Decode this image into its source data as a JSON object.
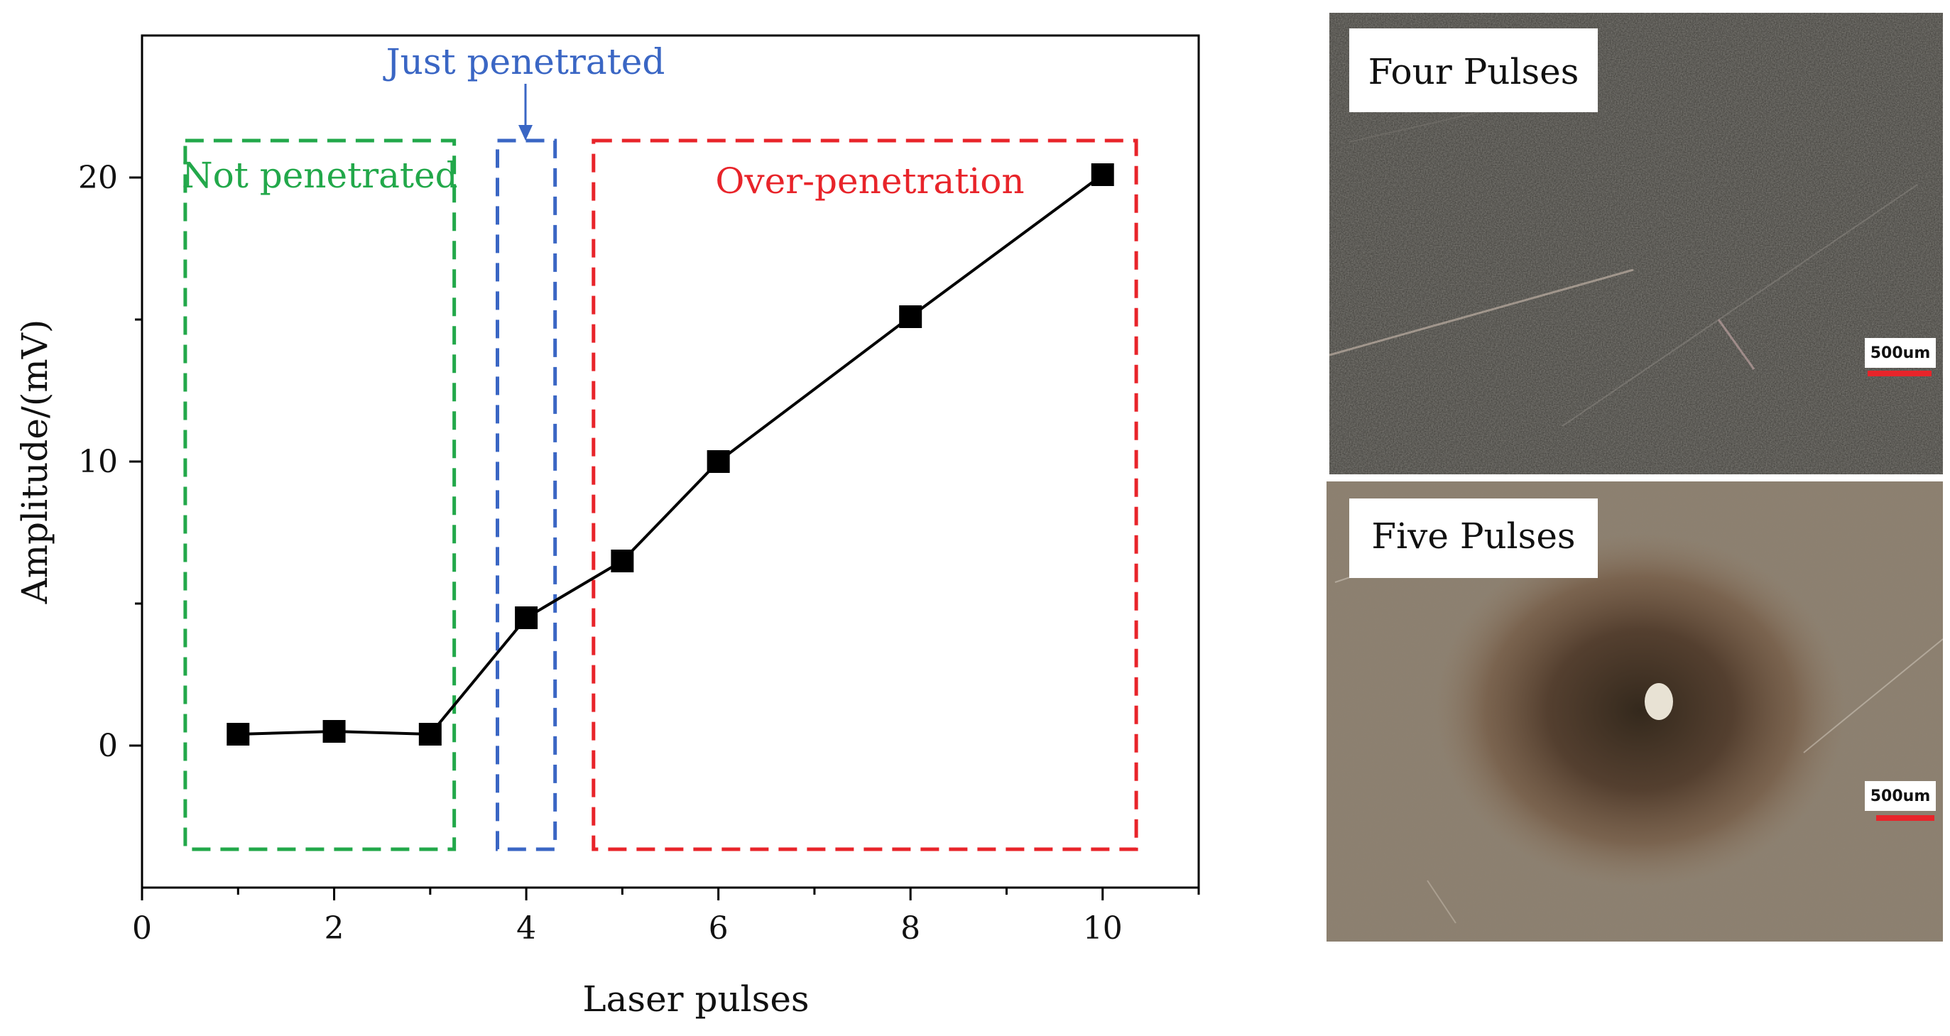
{
  "chart_data": {
    "type": "line",
    "xlabel": "Laser pulses",
    "ylabel": "Amplitude/(mV)",
    "xlim": [
      0,
      11
    ],
    "ylim": [
      -5,
      25
    ],
    "xticks": [
      0,
      2,
      4,
      6,
      8,
      10
    ],
    "yticks": [
      0,
      10,
      20
    ],
    "grid": false,
    "series": [
      {
        "x": [
          1,
          2,
          3,
          4,
          5,
          6,
          8,
          10
        ],
        "y": [
          0.4,
          0.5,
          0.4,
          4.5,
          6.5,
          10.0,
          15.1,
          20.1
        ],
        "marker": "square",
        "color": "#000000"
      }
    ],
    "regions": [
      {
        "label": "Not penetrated",
        "x_range": [
          0.45,
          3.25
        ],
        "color": "#22a84a"
      },
      {
        "label": "Just penetrated",
        "x_range": [
          3.7,
          4.3
        ],
        "color": "#3a66c4"
      },
      {
        "label": "Over-penetration",
        "x_range": [
          4.7,
          10.35
        ],
        "color": "#e8242a"
      }
    ]
  },
  "photos": [
    {
      "label": "Four Pulses",
      "scale_bar": "500um"
    },
    {
      "label": "Five Pulses",
      "scale_bar": "500um"
    }
  ]
}
